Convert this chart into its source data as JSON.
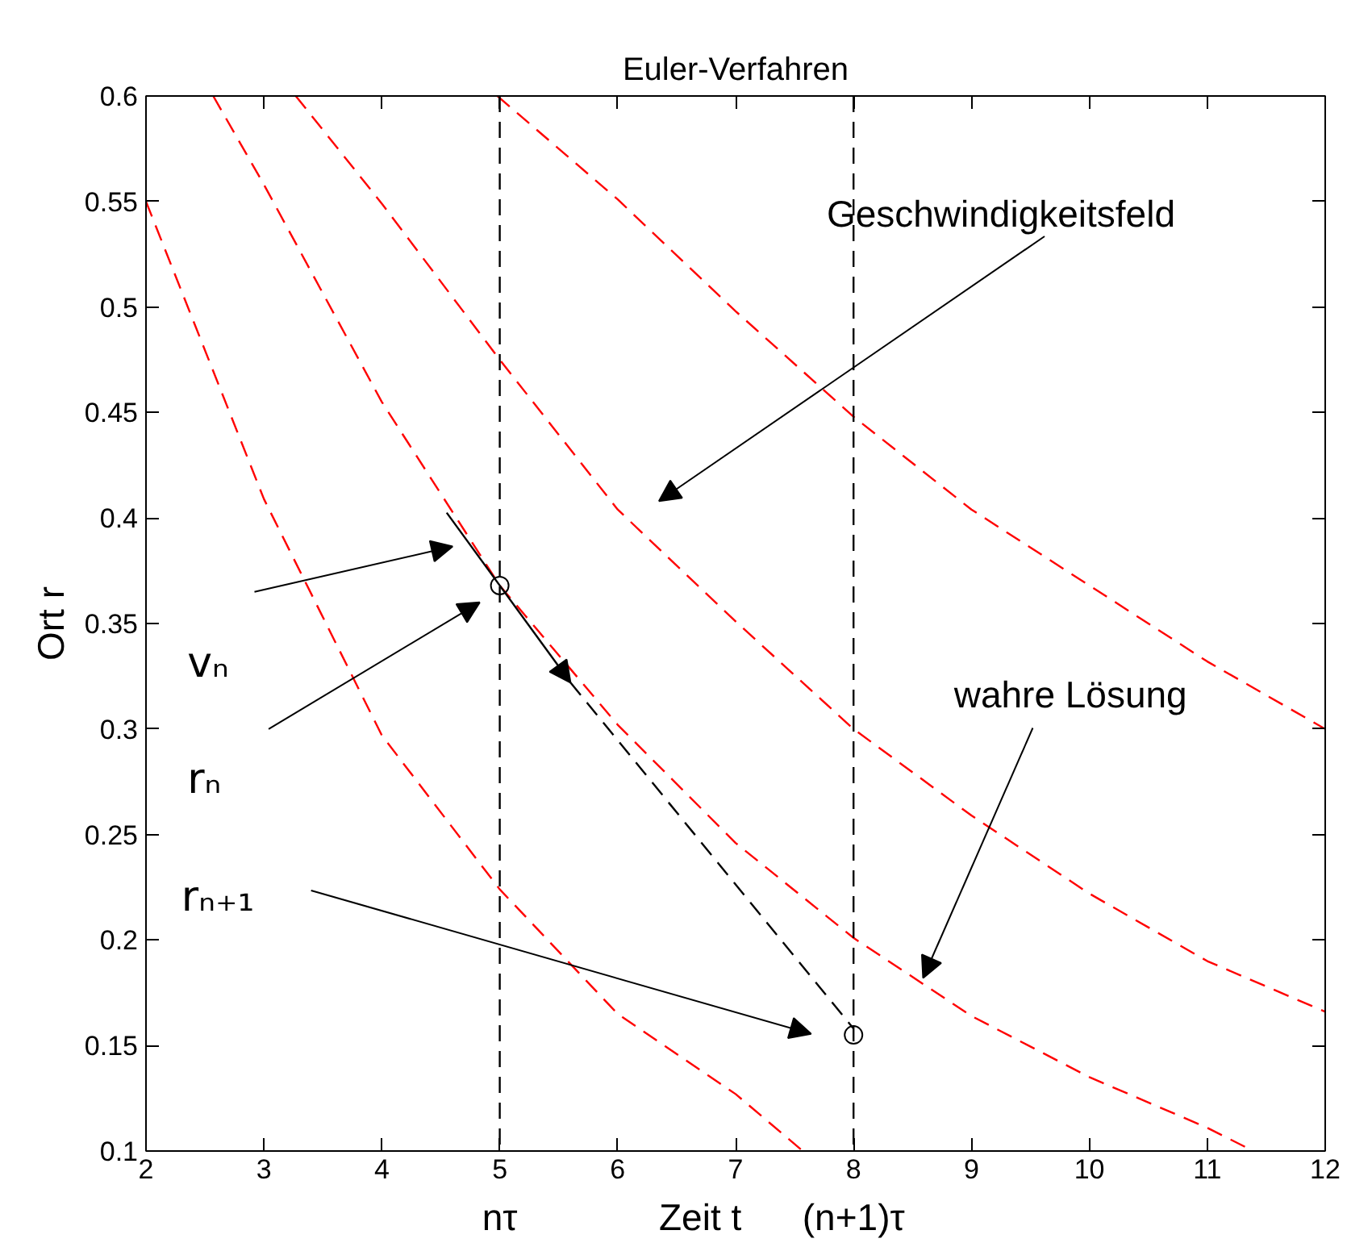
{
  "chart_data": {
    "type": "line",
    "title": "Euler-Verfahren",
    "xlabel": "Zeit t",
    "ylabel": "Ort r",
    "xlim": [
      2,
      12
    ],
    "ylim": [
      0.1,
      0.6
    ],
    "xticks": [
      2,
      3,
      4,
      5,
      6,
      7,
      8,
      9,
      10,
      11,
      12
    ],
    "yticks": [
      0.1,
      0.15,
      0.2,
      0.25,
      0.3,
      0.35,
      0.4,
      0.45,
      0.5,
      0.55,
      0.6
    ],
    "grid": false,
    "series": [
      {
        "color": "#ff0000",
        "line_style": "dashed",
        "x": [
          2,
          3,
          4,
          5,
          6,
          7,
          7.57
        ],
        "values": [
          0.55,
          0.409,
          0.297,
          0.224,
          0.165,
          0.127,
          0.1
        ]
      },
      {
        "color": "#ff0000",
        "line_style": "dashed",
        "x": [
          2.57,
          3,
          4,
          5,
          6,
          7,
          8,
          9,
          10,
          11,
          11.39
        ],
        "values": [
          0.6,
          0.558,
          0.455,
          0.368,
          0.302,
          0.246,
          0.201,
          0.164,
          0.135,
          0.111,
          0.1
        ]
      },
      {
        "color": "#ff0000",
        "line_style": "dashed",
        "x": [
          3.27,
          4,
          5,
          6,
          7,
          8,
          9,
          10,
          11,
          12
        ],
        "values": [
          0.6,
          0.549,
          0.475,
          0.404,
          0.351,
          0.3,
          0.259,
          0.222,
          0.19,
          0.166
        ]
      },
      {
        "color": "#ff0000",
        "line_style": "dashed",
        "x": [
          4.98,
          6,
          7,
          8,
          9,
          10,
          11,
          12
        ],
        "values": [
          0.6,
          0.551,
          0.498,
          0.448,
          0.404,
          0.368,
          0.332,
          0.3
        ]
      },
      {
        "color": "#000000",
        "line_style": "dashed",
        "x": [
          5.6,
          8
        ],
        "values": [
          0.322,
          0.158
        ]
      },
      {
        "type": "scatter",
        "marker": "circle",
        "color": "#000000",
        "x": [
          5,
          8
        ],
        "values": [
          0.368,
          0.155
        ]
      }
    ],
    "ref_lines": [
      {
        "axis": "x",
        "value": 5,
        "label": "nτ",
        "color": "#000000",
        "line_style": "dashed"
      },
      {
        "axis": "x",
        "value": 8,
        "label": "(n+1)τ",
        "color": "#000000",
        "line_style": "dashed"
      }
    ],
    "annotations": [
      "Geschwindigkeitsfeld",
      {
        "text": "wahre Lösung",
        "x": 8.59,
        "y": 0.182
      },
      "vₙ",
      "rₙ",
      "rₙ₊₁"
    ]
  }
}
